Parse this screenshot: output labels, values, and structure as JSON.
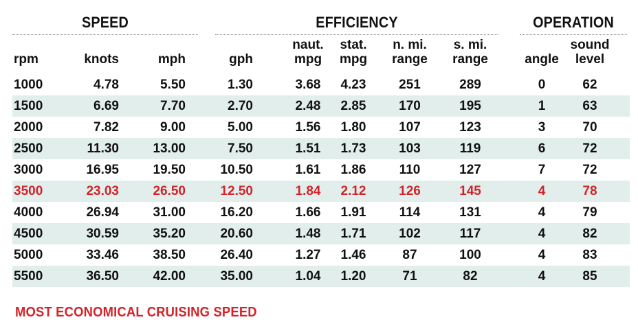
{
  "chart_data": {
    "type": "table",
    "groups": [
      {
        "title": "SPEED",
        "columns": [
          0,
          1,
          2
        ]
      },
      {
        "title": "EFFICIENCY",
        "columns": [
          3,
          4,
          5,
          6,
          7
        ]
      },
      {
        "title": "OPERATION",
        "columns": [
          8,
          9
        ]
      }
    ],
    "columns": [
      {
        "lines": [
          "rpm"
        ]
      },
      {
        "lines": [
          "knots"
        ]
      },
      {
        "lines": [
          "mph"
        ]
      },
      {
        "lines": [
          "gph"
        ]
      },
      {
        "lines": [
          "naut.",
          "mpg"
        ]
      },
      {
        "lines": [
          "stat.",
          "mpg"
        ]
      },
      {
        "lines": [
          "n. mi.",
          "range"
        ]
      },
      {
        "lines": [
          "s. mi.",
          "range"
        ]
      },
      {
        "lines": [
          "angle"
        ]
      },
      {
        "lines": [
          "sound",
          "level"
        ]
      }
    ],
    "rows": [
      [
        "1000",
        "4.78",
        "5.50",
        "1.30",
        "3.68",
        "4.23",
        "251",
        "289",
        "0",
        "62"
      ],
      [
        "1500",
        "6.69",
        "7.70",
        "2.70",
        "2.48",
        "2.85",
        "170",
        "195",
        "1",
        "63"
      ],
      [
        "2000",
        "7.82",
        "9.00",
        "5.00",
        "1.56",
        "1.80",
        "107",
        "123",
        "3",
        "70"
      ],
      [
        "2500",
        "11.30",
        "13.00",
        "7.50",
        "1.51",
        "1.73",
        "103",
        "119",
        "6",
        "72"
      ],
      [
        "3000",
        "16.95",
        "19.50",
        "10.50",
        "1.61",
        "1.86",
        "110",
        "127",
        "7",
        "72"
      ],
      [
        "3500",
        "23.03",
        "26.50",
        "12.50",
        "1.84",
        "2.12",
        "126",
        "145",
        "4",
        "78"
      ],
      [
        "4000",
        "26.94",
        "31.00",
        "16.20",
        "1.66",
        "1.91",
        "114",
        "131",
        "4",
        "79"
      ],
      [
        "4500",
        "30.59",
        "35.20",
        "20.60",
        "1.48",
        "1.71",
        "102",
        "117",
        "4",
        "82"
      ],
      [
        "5000",
        "33.46",
        "38.50",
        "26.40",
        "1.27",
        "1.46",
        "87",
        "100",
        "4",
        "83"
      ],
      [
        "5500",
        "36.50",
        "42.00",
        "35.00",
        "1.04",
        "1.20",
        "71",
        "82",
        "4",
        "85"
      ]
    ],
    "highlight_row": 5,
    "footnote": "MOST ECONOMICAL CRUISING SPEED"
  },
  "colors": {
    "highlight": "#d2232a",
    "stripe": "#e2eeeb",
    "text": "#111111"
  }
}
